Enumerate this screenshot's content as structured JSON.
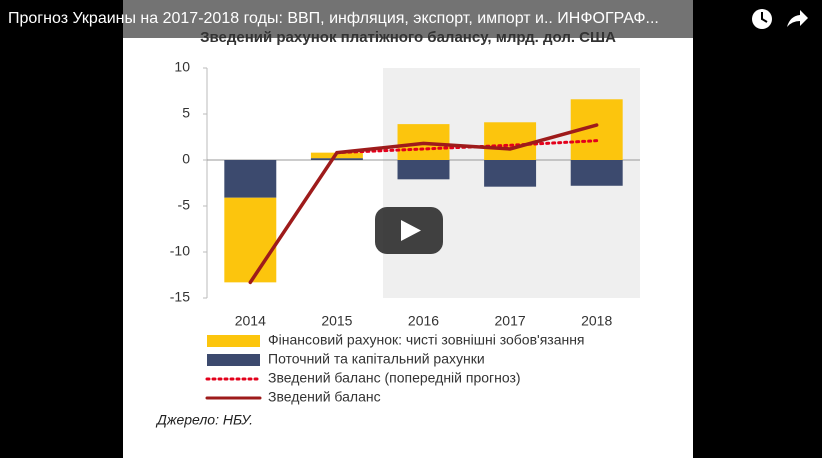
{
  "video_title": "Прогноз Украины на 2017-2018 годы: ВВП, инфляция, экспорт, импорт и.. ИНФОГРАФ...",
  "chart_data": {
    "type": "bar-line",
    "title": "Зведений рахунок платіжного балансу, млрд. дол. США",
    "categories": [
      "2014",
      "2015",
      "2016",
      "2017",
      "2018"
    ],
    "series": [
      {
        "name": "Фінансовий рахунок: чисті зовнішні зобов'язання",
        "kind": "bar",
        "color": "#fcc50d",
        "values": [
          -9.2,
          0.6,
          3.9,
          4.1,
          6.6
        ]
      },
      {
        "name": "Поточний та капітальний рахунки",
        "kind": "bar",
        "color": "#3c4a6e",
        "values": [
          -4.1,
          0.2,
          -2.1,
          -2.9,
          -2.8
        ]
      },
      {
        "name": "Зведений баланс (попередній прогноз)",
        "kind": "line",
        "style": "dotted",
        "color": "#e3001b",
        "values": [
          null,
          0.8,
          1.2,
          1.6,
          2.1
        ]
      },
      {
        "name": "Зведений баланс",
        "kind": "line",
        "style": "solid",
        "color": "#9e1b1b",
        "values": [
          -13.3,
          0.8,
          1.8,
          1.2,
          3.8
        ]
      }
    ],
    "ylim": [
      -15,
      10
    ],
    "yticks": [
      -15,
      -10,
      -5,
      0,
      5,
      10
    ],
    "source": "Джерело: НБУ."
  }
}
